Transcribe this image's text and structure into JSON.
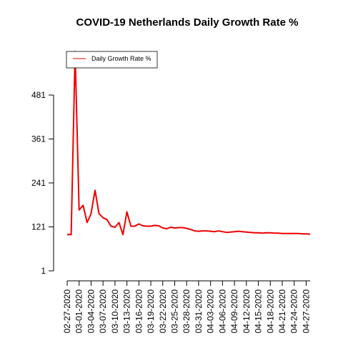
{
  "chart_data": {
    "type": "line",
    "title": "COVID-19 Netherlands Daily Growth Rate %",
    "xlabel": "",
    "ylabel": "",
    "legend": {
      "placement": "top-left",
      "entries": [
        "Daily Growth Rate %"
      ]
    },
    "grid": false,
    "ylim": [
      1,
      481
    ],
    "y_ticks": [
      1,
      121,
      241,
      361,
      481
    ],
    "x_tick_labels": [
      "02-27-2020",
      "03-01-2020",
      "03-04-2020",
      "03-07-2020",
      "03-10-2020",
      "03-13-2020",
      "03-16-2020",
      "03-19-2020",
      "03-22-2020",
      "03-25-2020",
      "03-28-2020",
      "03-31-2020",
      "04-03-2020",
      "04-06-2020",
      "04-09-2020",
      "04-12-2020",
      "04-15-2020",
      "04-18-2020",
      "04-21-2020",
      "04-24-2020",
      "04-27-2020"
    ],
    "x": [
      "02-27-2020",
      "02-28-2020",
      "02-29-2020",
      "03-01-2020",
      "03-02-2020",
      "03-03-2020",
      "03-04-2020",
      "03-05-2020",
      "03-06-2020",
      "03-07-2020",
      "03-08-2020",
      "03-09-2020",
      "03-10-2020",
      "03-11-2020",
      "03-12-2020",
      "03-13-2020",
      "03-14-2020",
      "03-15-2020",
      "03-16-2020",
      "03-17-2020",
      "03-18-2020",
      "03-19-2020",
      "03-20-2020",
      "03-21-2020",
      "03-22-2020",
      "03-23-2020",
      "03-24-2020",
      "03-25-2020",
      "03-26-2020",
      "03-27-2020",
      "03-28-2020",
      "03-29-2020",
      "03-30-2020",
      "03-31-2020",
      "04-01-2020",
      "04-02-2020",
      "04-03-2020",
      "04-04-2020",
      "04-05-2020",
      "04-06-2020",
      "04-07-2020",
      "04-08-2020",
      "04-09-2020",
      "04-10-2020",
      "04-11-2020",
      "04-12-2020",
      "04-13-2020",
      "04-14-2020",
      "04-15-2020",
      "04-16-2020",
      "04-17-2020",
      "04-18-2020",
      "04-19-2020",
      "04-20-2020",
      "04-21-2020",
      "04-22-2020",
      "04-23-2020",
      "04-24-2020",
      "04-25-2020",
      "04-26-2020",
      "04-27-2020",
      "04-28-2020"
    ],
    "series": [
      {
        "name": "Daily Growth Rate %",
        "color": "#ee0000",
        "values": [
          100,
          100,
          600,
          167,
          180,
          133,
          157,
          221,
          157,
          146,
          141,
          123,
          120,
          133,
          100,
          162,
          123,
          123,
          129,
          124,
          123,
          123,
          125,
          124,
          118,
          116,
          120,
          118,
          119,
          119,
          117,
          114,
          110,
          109,
          110,
          110,
          109,
          108,
          110,
          108,
          106,
          107,
          108,
          109,
          108,
          107,
          106,
          105,
          105,
          104,
          105,
          105,
          104,
          104,
          103,
          103,
          103,
          103,
          103,
          102,
          102,
          101
        ]
      }
    ]
  }
}
